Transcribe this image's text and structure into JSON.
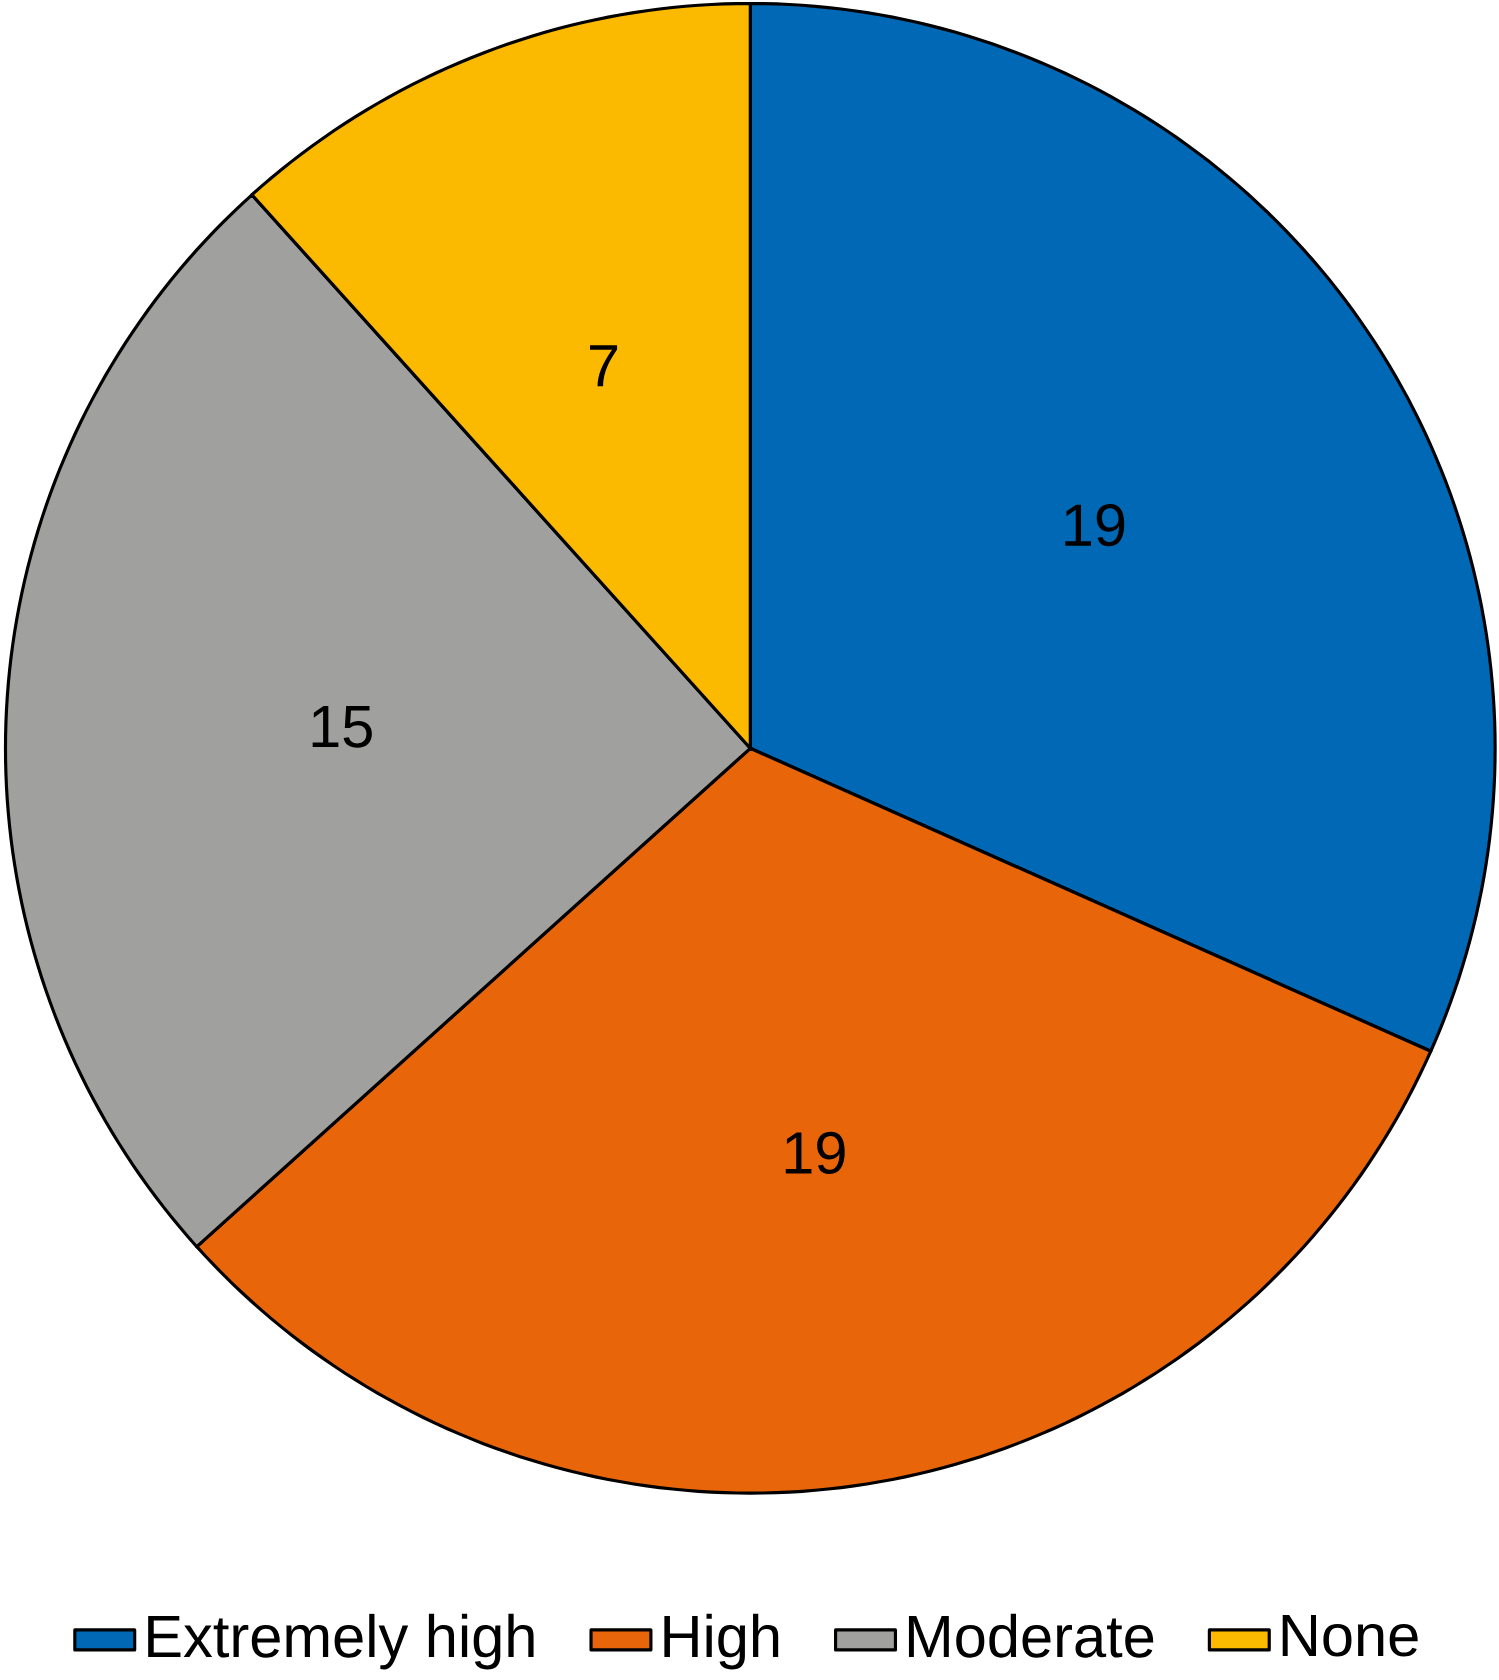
{
  "chart_data": {
    "type": "pie",
    "categories": [
      "Extremely high",
      "High",
      "Moderate",
      "None"
    ],
    "values": [
      19,
      19,
      15,
      7
    ],
    "colors": [
      "#0068b4",
      "#e8650a",
      "#a0a09f",
      "#fbb900"
    ],
    "data_labels": true,
    "legend": "bottom"
  }
}
